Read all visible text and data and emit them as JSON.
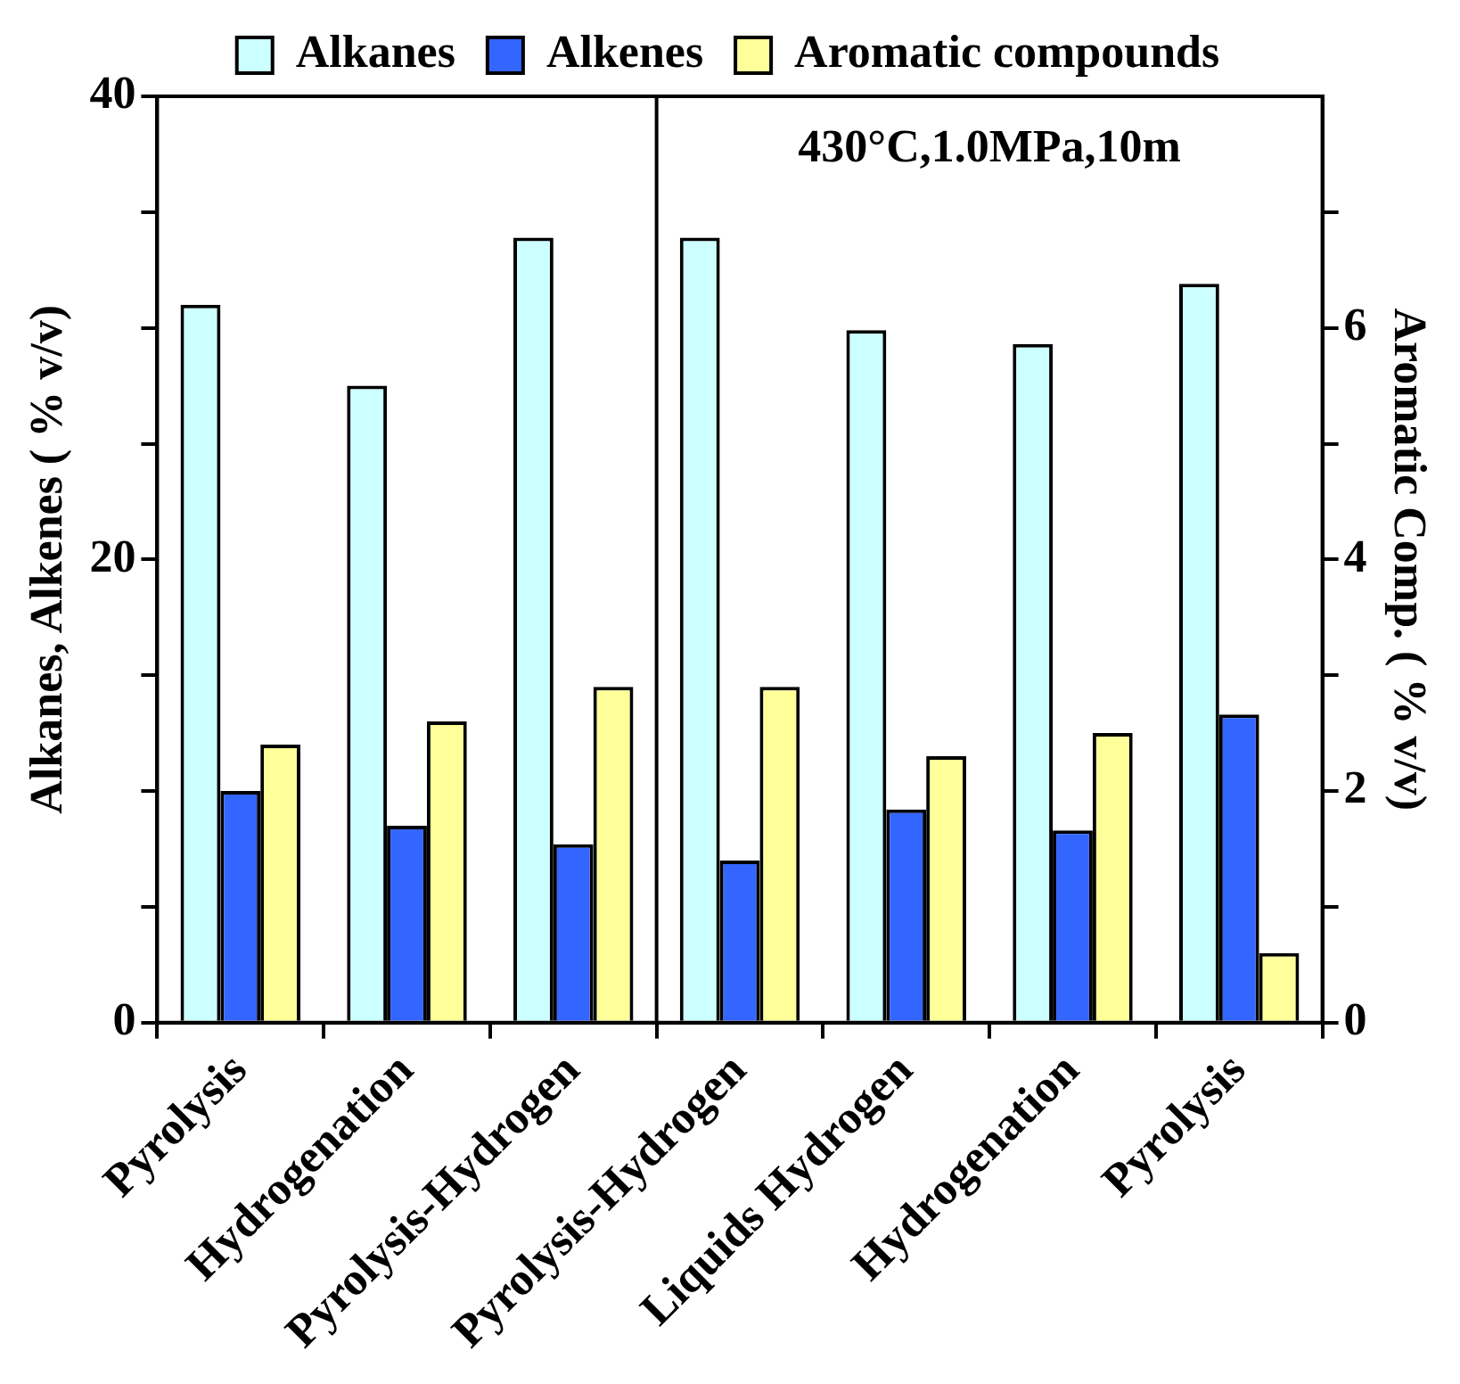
{
  "chart_data": {
    "type": "bar",
    "ylabel": "Alkanes, Alkenes ( % v/v)",
    "y2label": "Aromatic Comp. ( % v/v)",
    "categories": [
      "Pyrolysis",
      "Hydrogenation",
      "Pyrolysis-Hydrogen",
      "Pyrolysis-Hydrogen",
      "Liquids Hydrogen",
      "Hydrogenation",
      "Pyrolysis"
    ],
    "series": [
      {
        "name": "Alkanes",
        "color": "#ccffff",
        "values": [
          31.0,
          27.5,
          33.9,
          33.9,
          29.9,
          29.3,
          31.9
        ]
      },
      {
        "name": "Alkenes",
        "color": "#3366ff",
        "values": [
          10.0,
          8.5,
          7.7,
          7.0,
          9.2,
          8.3,
          13.3
        ]
      },
      {
        "name": "Aromatic compounds",
        "color": "#ffff99",
        "axis": "y2",
        "values": [
          2.4,
          2.6,
          2.9,
          2.9,
          2.3,
          2.5,
          0.6
        ]
      }
    ],
    "ylim": [
      0,
      40
    ],
    "yticks": [
      0,
      {
        "value": 5,
        "label": null
      },
      {
        "value": 10,
        "label": null
      },
      {
        "value": 15,
        "label": null
      },
      20,
      {
        "value": 25,
        "label": null
      },
      {
        "value": 30,
        "label": null
      },
      {
        "value": 35,
        "label": null
      },
      40
    ],
    "y2lim": [
      0,
      8
    ],
    "y2ticks": [
      0,
      {
        "value": 1,
        "label": null
      },
      2,
      {
        "value": 3,
        "label": null
      },
      4,
      {
        "value": 5,
        "label": null
      },
      6,
      {
        "value": 7,
        "label": null
      }
    ],
    "annotations": [
      "430°C,1.0MPa,10m"
    ],
    "legend": "top",
    "grid": false
  }
}
